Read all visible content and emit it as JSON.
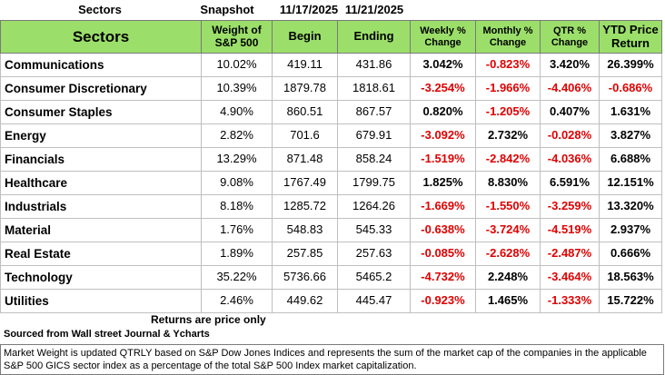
{
  "header": {
    "label": "Sectors",
    "snapshot": "Snapshot",
    "begin_date": "11/17/2025",
    "end_date": "11/21/2025"
  },
  "table": {
    "columns": [
      "Sectors",
      "Weight of S&P 500",
      "Begin",
      "Ending",
      "Weekly % Change",
      "Monthly % Change",
      "QTR % Change",
      "YTD Price Return"
    ],
    "rows": [
      [
        "Communications",
        "10.02%",
        "419.11",
        "431.86",
        "3.042%",
        "-0.823%",
        "3.420%",
        "26.399%"
      ],
      [
        "Consumer Discretionary",
        "10.39%",
        "1879.78",
        "1818.61",
        "-3.254%",
        "-1.966%",
        "-4.406%",
        "-0.686%"
      ],
      [
        "Consumer Staples",
        "4.90%",
        "860.51",
        "867.57",
        "0.820%",
        "-1.205%",
        "0.407%",
        "1.631%"
      ],
      [
        "Energy",
        "2.82%",
        "701.6",
        "679.91",
        "-3.092%",
        "2.732%",
        "-0.028%",
        "3.827%"
      ],
      [
        "Financials",
        "13.29%",
        "871.48",
        "858.24",
        "-1.519%",
        "-2.842%",
        "-4.036%",
        "6.688%"
      ],
      [
        "Healthcare",
        "9.08%",
        "1767.49",
        "1799.75",
        "1.825%",
        "8.830%",
        "6.591%",
        "12.151%"
      ],
      [
        "Industrials",
        "8.18%",
        "1285.72",
        "1264.26",
        "-1.669%",
        "-1.550%",
        "-3.259%",
        "13.320%"
      ],
      [
        "Material",
        "1.76%",
        "548.83",
        "545.33",
        "-0.638%",
        "-3.724%",
        "-4.519%",
        "2.937%"
      ],
      [
        "Real Estate",
        "1.89%",
        "257.85",
        "257.63",
        "-0.085%",
        "-2.628%",
        "-2.487%",
        "0.666%"
      ],
      [
        "Technology",
        "35.22%",
        "5736.66",
        "5465.2",
        "-4.732%",
        "2.248%",
        "-3.464%",
        "18.563%"
      ],
      [
        "Utilities",
        "2.46%",
        "449.62",
        "445.47",
        "-0.923%",
        "1.465%",
        "-1.333%",
        "15.722%"
      ]
    ]
  },
  "notes": {
    "returns": "Returns are price only",
    "source": "Sourced from Wall street Journal & Ycharts"
  },
  "footnote": "Market Weight is updated QTRLY based on S&P Dow Jones Indices and represents the sum of the market cap of the companies in the applicable S&P 500 GICS sector index as a percentage of the total S&P 500 Index market capitalization."
}
